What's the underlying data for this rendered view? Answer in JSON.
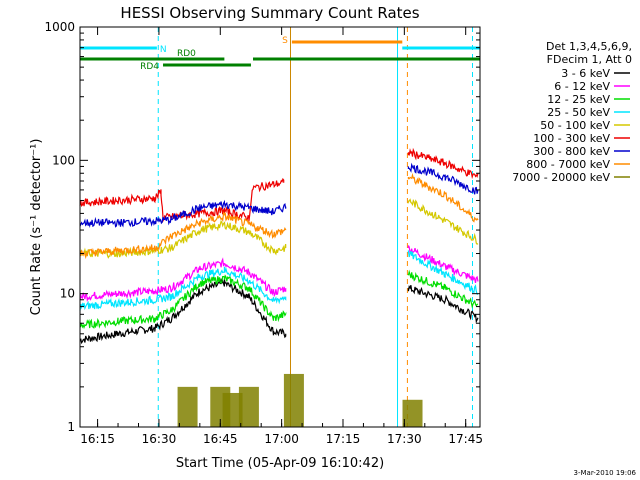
{
  "chart_data": {
    "type": "line",
    "title": "HESSI Observing Summary Count Rates",
    "xlabel": "Start Time (05-Apr-09 16:10:42)",
    "ylabel": "Count Rate (s⁻¹ detector⁻¹)",
    "yscale": "log",
    "ylim": [
      1,
      1000
    ],
    "xlim": [
      "16:10:42",
      "17:48:30"
    ],
    "x_ticks": [
      "16:15",
      "16:30",
      "16:45",
      "17:00",
      "17:15",
      "17:30",
      "17:45"
    ],
    "y_ticks": [
      "1",
      "10",
      "100",
      "1000"
    ],
    "legend_position": "right",
    "legend_header": [
      "Det 1,3,4,5,6,9,",
      "FDecim 1, Att 0"
    ],
    "footer_date": "3-Mar-2010 19:06",
    "flags": [
      {
        "label": "N",
        "color": "#00e5ff",
        "intervals": [
          [
            "16:10:42",
            "16:29:30"
          ],
          [
            "17:29:30",
            "17:48:30"
          ]
        ]
      },
      {
        "label": "S",
        "color": "#ff8c00",
        "intervals": [
          [
            "17:02:30",
            "17:29:30"
          ]
        ]
      },
      {
        "label": "RD0",
        "color": "#008000",
        "intervals": [
          [
            "16:10:42",
            "16:46:00"
          ],
          [
            "16:53:00",
            "17:48:30"
          ]
        ]
      },
      {
        "label": "RD4",
        "color": "#008000",
        "intervals": [
          [
            "16:31:00",
            "16:52:30"
          ]
        ]
      }
    ],
    "vertical_markers": [
      {
        "time": "16:29:50",
        "color": "#00e5ff",
        "style": "dashed"
      },
      {
        "time": "17:02:10",
        "color": "#cc8800",
        "style": "solid"
      },
      {
        "time": "17:28:20",
        "color": "#00e5ff",
        "style": "solid"
      },
      {
        "time": "17:30:45",
        "color": "#ff8c00",
        "style": "dashed"
      },
      {
        "time": "17:46:40",
        "color": "#00e5ff",
        "style": "dashed"
      }
    ],
    "series": [
      {
        "name": "3 - 6 keV",
        "color": "#000000",
        "values": [
          [
            "16:10:42",
            4.5
          ],
          [
            "16:20:00",
            5.0
          ],
          [
            "16:29:00",
            5.5
          ],
          [
            "16:33:00",
            6.5
          ],
          [
            "16:40:00",
            10.5
          ],
          [
            "16:46:00",
            12.0
          ],
          [
            "16:52:00",
            9.5
          ],
          [
            "16:58:00",
            5.2
          ],
          [
            "17:01:00",
            5.0
          ],
          [
            "17:31:00",
            11.0
          ],
          [
            "17:40:00",
            9.0
          ],
          [
            "17:48:00",
            6.5
          ]
        ]
      },
      {
        "name": "6 - 12 keV",
        "color": "#ff00ff",
        "values": [
          [
            "16:10:42",
            9.5
          ],
          [
            "16:20:00",
            10.0
          ],
          [
            "16:29:00",
            10.5
          ],
          [
            "16:33:00",
            11.0
          ],
          [
            "16:40:00",
            15.5
          ],
          [
            "16:46:00",
            17.0
          ],
          [
            "16:52:00",
            14.5
          ],
          [
            "16:58:00",
            10.2
          ],
          [
            "17:01:00",
            11.0
          ],
          [
            "17:31:00",
            22.0
          ],
          [
            "17:40:00",
            16.0
          ],
          [
            "17:48:00",
            12.5
          ]
        ]
      },
      {
        "name": "12 - 25 keV",
        "color": "#00dd00",
        "values": [
          [
            "16:10:42",
            5.8
          ],
          [
            "16:20:00",
            6.2
          ],
          [
            "16:29:00",
            6.5
          ],
          [
            "16:33:00",
            7.5
          ],
          [
            "16:40:00",
            12.0
          ],
          [
            "16:46:00",
            13.0
          ],
          [
            "16:52:00",
            11.0
          ],
          [
            "16:58:00",
            6.5
          ],
          [
            "17:01:00",
            7.0
          ],
          [
            "17:31:00",
            14.0
          ],
          [
            "17:40:00",
            11.0
          ],
          [
            "17:48:00",
            8.0
          ]
        ]
      },
      {
        "name": "25 - 50 keV",
        "color": "#00e5ff",
        "values": [
          [
            "16:10:42",
            8.0
          ],
          [
            "16:20:00",
            8.5
          ],
          [
            "16:29:00",
            9.0
          ],
          [
            "16:33:00",
            9.5
          ],
          [
            "16:40:00",
            13.5
          ],
          [
            "16:46:00",
            15.0
          ],
          [
            "16:52:00",
            12.5
          ],
          [
            "16:58:00",
            8.8
          ],
          [
            "17:01:00",
            9.5
          ],
          [
            "17:31:00",
            20.0
          ],
          [
            "17:40:00",
            14.0
          ],
          [
            "17:48:00",
            10.5
          ]
        ]
      },
      {
        "name": "50 - 100 keV",
        "color": "#d4c800",
        "values": [
          [
            "16:10:42",
            20.0
          ],
          [
            "16:20:00",
            20.0
          ],
          [
            "16:29:00",
            21.0
          ],
          [
            "16:33:00",
            22.0
          ],
          [
            "16:40:00",
            30.0
          ],
          [
            "16:46:00",
            33.0
          ],
          [
            "16:52:00",
            29.0
          ],
          [
            "16:58:00",
            21.0
          ],
          [
            "17:01:00",
            22.0
          ],
          [
            "17:31:00",
            50.0
          ],
          [
            "17:40:00",
            35.0
          ],
          [
            "17:48:00",
            25.0
          ]
        ]
      },
      {
        "name": "100 - 300 keV",
        "color": "#ee0000",
        "values": [
          [
            "16:10:42",
            48.0
          ],
          [
            "16:20:00",
            50.0
          ],
          [
            "16:29:00",
            52.0
          ],
          [
            "16:30:30",
            58.0
          ],
          [
            "16:31:00",
            37.0
          ],
          [
            "16:46:00",
            42.0
          ],
          [
            "16:52:00",
            37.0
          ],
          [
            "16:53:00",
            62.0
          ],
          [
            "16:58:00",
            66.0
          ],
          [
            "17:00:30",
            68.0
          ],
          [
            "17:31:00",
            115.0
          ],
          [
            "17:40:00",
            95.0
          ],
          [
            "17:48:00",
            75.0
          ]
        ]
      },
      {
        "name": "300 - 800 keV",
        "color": "#0000cc",
        "values": [
          [
            "16:10:42",
            34.0
          ],
          [
            "16:20:00",
            34.0
          ],
          [
            "16:29:00",
            35.0
          ],
          [
            "16:33:00",
            36.0
          ],
          [
            "16:40:00",
            44.0
          ],
          [
            "16:46:00",
            47.0
          ],
          [
            "16:52:00",
            44.0
          ],
          [
            "16:58:00",
            41.0
          ],
          [
            "17:01:00",
            45.0
          ],
          [
            "17:31:00",
            90.0
          ],
          [
            "17:40:00",
            75.0
          ],
          [
            "17:48:00",
            58.0
          ]
        ]
      },
      {
        "name": "800 - 7000 keV",
        "color": "#ff8c00",
        "values": [
          [
            "16:10:42",
            20.0
          ],
          [
            "16:20:00",
            21.0
          ],
          [
            "16:29:00",
            22.0
          ],
          [
            "16:33:00",
            27.0
          ],
          [
            "16:40:00",
            34.0
          ],
          [
            "16:46:00",
            38.0
          ],
          [
            "16:52:00",
            33.0
          ],
          [
            "16:58:00",
            28.0
          ],
          [
            "17:01:00",
            30.0
          ],
          [
            "17:31:00",
            75.0
          ],
          [
            "17:40:00",
            55.0
          ],
          [
            "17:48:00",
            35.0
          ]
        ]
      },
      {
        "name": "7000 - 20000 keV",
        "color": "#808000",
        "values": [
          [
            "16:37:00",
            2.0
          ],
          [
            "16:45:00",
            2.0
          ],
          [
            "16:48:00",
            1.8
          ],
          [
            "16:52:00",
            2.0
          ],
          [
            "17:03:00",
            2.5
          ],
          [
            "17:32:00",
            1.6
          ]
        ]
      }
    ]
  }
}
